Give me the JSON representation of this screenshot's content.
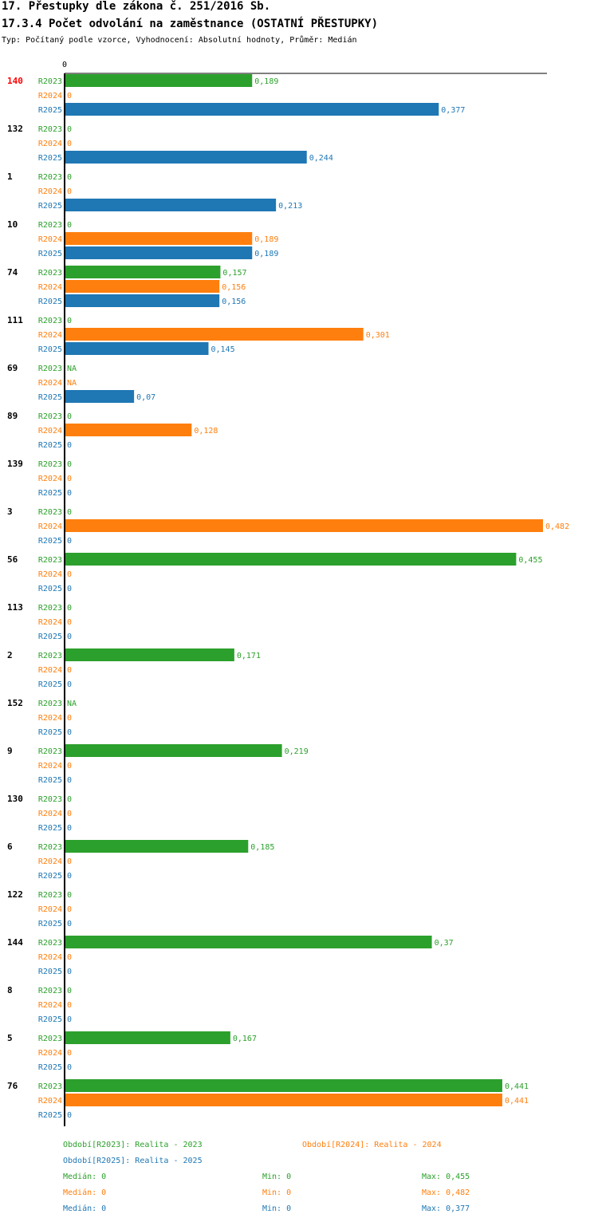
{
  "header": {
    "title1": "17. Přestupky dle zákona č. 251/2016 Sb.",
    "title2": "17.3.4 Počet odvolání na zaměstnance (OSTATNÍ PŘESTUPKY)",
    "subtitle": "Typ: Počítaný podle vzorce, Vyhodnocení: Absolutní hodnoty, Průměr: Medián"
  },
  "colors": {
    "R2023": "#2ca02c",
    "R2024": "#ff7f0e",
    "R2025": "#1f77b4",
    "highlight": "#ff0000",
    "text": "#000000"
  },
  "chart_data": {
    "type": "bar",
    "orientation": "horizontal",
    "axis_zero_label": "0",
    "xlim": [
      0,
      0.482
    ],
    "highlight_category": "140",
    "categories": [
      "140",
      "132",
      "1",
      "10",
      "74",
      "111",
      "69",
      "89",
      "139",
      "3",
      "56",
      "113",
      "2",
      "152",
      "9",
      "130",
      "6",
      "122",
      "144",
      "8",
      "5",
      "76"
    ],
    "series": [
      {
        "name": "R2023",
        "values": [
          "0,189",
          "0",
          "0",
          "0",
          "0,157",
          "0",
          "NA",
          "0",
          "0",
          "0",
          "0,455",
          "0",
          "0,171",
          "NA",
          "0,219",
          "0",
          "0,185",
          "0",
          "0,37",
          "0",
          "0,167",
          "0,441"
        ]
      },
      {
        "name": "R2024",
        "values": [
          "0",
          "0",
          "0",
          "0,189",
          "0,156",
          "0,301",
          "NA",
          "0,128",
          "0",
          "0,482",
          "0",
          "0",
          "0",
          "0",
          "0",
          "0",
          "0",
          "0",
          "0",
          "0",
          "0",
          "0,441"
        ]
      },
      {
        "name": "R2025",
        "values": [
          "0,377",
          "0,244",
          "0,213",
          "0,189",
          "0,156",
          "0,145",
          "0,07",
          "0",
          "0",
          "0",
          "0",
          "0",
          "0",
          "0",
          "0",
          "0",
          "0",
          "0",
          "0",
          "0",
          "0",
          "0"
        ]
      }
    ]
  },
  "legend": {
    "periods": [
      "Období[R2023]: Realita - 2023",
      "Období[R2024]: Realita - 2024",
      "Období[R2025]: Realita - 2025"
    ],
    "stats": [
      {
        "median": "Medián: 0",
        "min": "Min: 0",
        "max": "Max: 0,455"
      },
      {
        "median": "Medián: 0",
        "min": "Min: 0",
        "max": "Max: 0,482"
      },
      {
        "median": "Medián: 0",
        "min": "Min: 0",
        "max": "Max: 0,377"
      }
    ]
  }
}
